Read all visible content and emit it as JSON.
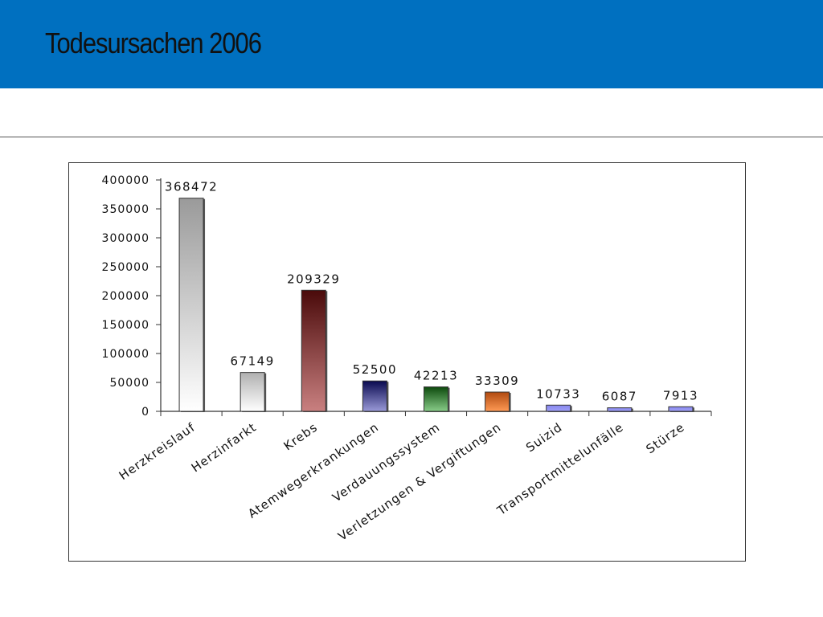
{
  "slide": {
    "title": "Todesursachen 2006"
  },
  "colors": {
    "header_band": "#0070c0"
  },
  "chart_data": {
    "type": "bar",
    "title": "",
    "xlabel": "",
    "ylabel": "",
    "ylim": [
      0,
      400000
    ],
    "yticks": [
      "0",
      "50000",
      "100000",
      "150000",
      "200000",
      "250000",
      "300000",
      "350000",
      "400000"
    ],
    "categories": [
      "Herzkreislauf",
      "Herzinfarkt",
      "Krebs",
      "Atemwegerkrankungen",
      "Verdauungssystem",
      "Verletzungen & Vergiftungen",
      "Suizid",
      "Transportmittelunfälle",
      "Stürze"
    ],
    "values": [
      368472,
      67149,
      209329,
      52500,
      42213,
      33309,
      10733,
      6087,
      7913
    ],
    "data_labels": [
      "368472",
      "67149",
      "209329",
      "52500",
      "42213",
      "33309",
      "10733",
      "6087",
      "7913"
    ],
    "bar_colors": [
      [
        "#9a9a9a",
        "#ffffff"
      ],
      [
        "#b0b0b0",
        "#ffffff"
      ],
      [
        "#4a0a0a",
        "#c98080"
      ],
      [
        "#0a0a50",
        "#9a9ad8"
      ],
      [
        "#0d4a0d",
        "#88cc88"
      ],
      [
        "#b04a10",
        "#ff9a55"
      ],
      [
        "#8888ee",
        "#a0a0f8"
      ],
      [
        "#8888ee",
        "#a0a0f8"
      ],
      [
        "#8888ee",
        "#a0a0f8"
      ]
    ],
    "grid": false,
    "legend": "none"
  }
}
